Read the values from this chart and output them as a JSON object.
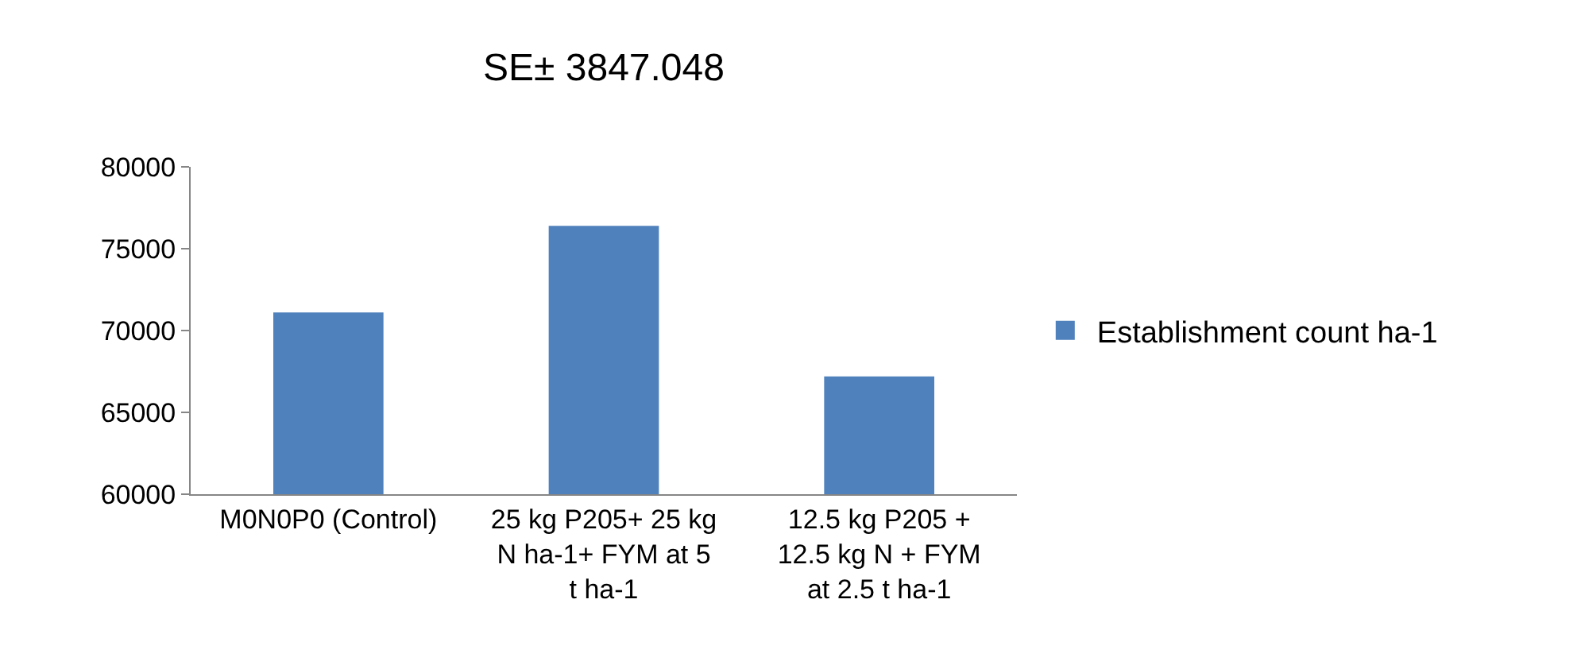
{
  "chart_data": {
    "type": "bar",
    "title": "SE± 3847.048",
    "categories": [
      "M0N0P0 (Control)",
      "25 kg P205+ 25 kg N ha-1+ FYM at 5 t ha-1",
      "12.5 kg P205 + 12.5 kg N + FYM at 2.5 t ha-1"
    ],
    "series": [
      {
        "name": "Establishment count ha-1",
        "color": "#4f81bd",
        "values": [
          71100,
          76400,
          67200
        ]
      }
    ],
    "ylim": [
      60000,
      80000
    ],
    "yticks": [
      60000,
      65000,
      70000,
      75000,
      80000
    ],
    "grid": false,
    "legend": "right"
  }
}
